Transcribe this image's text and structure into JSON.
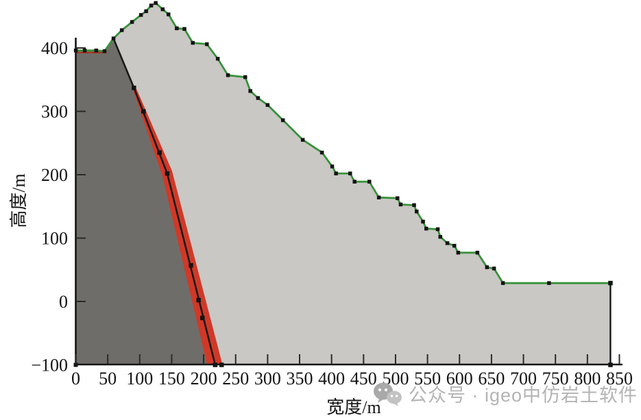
{
  "watermark": {
    "icon": "wechat-icon",
    "text": "公众号 · igeo中仿岩土软件",
    "color": "#b4b4b4"
  },
  "chart_data": {
    "type": "area",
    "title": "",
    "subtitle": "",
    "xlabel": "宽度/m",
    "ylabel": "高度/m",
    "xlim": [
      0,
      850
    ],
    "ylim": [
      -100,
      470
    ],
    "grid": false,
    "legend": null,
    "x_ticks": [
      0,
      50,
      100,
      150,
      200,
      250,
      300,
      350,
      400,
      450,
      500,
      550,
      600,
      650,
      700,
      750,
      800,
      850
    ],
    "y_ticks": [
      -100,
      0,
      100,
      200,
      300,
      400
    ],
    "colors": {
      "slope_body": "#c9c8c4",
      "bedrock": "#6f6d69",
      "weak_layer": "#d03928",
      "surface_weak_line": "#a5301f",
      "surface_line": "#37923a",
      "fault_line": "#1a1a1a",
      "marker": "#141414",
      "axis": "#141414"
    },
    "regions": [
      {
        "name": "slope-body",
        "description": "light gray landslide/slope cross-section body",
        "fill": "slope_body"
      },
      {
        "name": "bedrock",
        "description": "dark gray bedrock wedge on the left",
        "fill": "bedrock"
      },
      {
        "name": "weak-layer",
        "description": "red sliding weak zone band",
        "fill": "weak_layer"
      }
    ],
    "surface_profile": [
      [
        0,
        396
      ],
      [
        14,
        396
      ],
      [
        32,
        396
      ],
      [
        45,
        395
      ],
      [
        59,
        415
      ],
      [
        72,
        428
      ],
      [
        88,
        441
      ],
      [
        102,
        452
      ],
      [
        110,
        458
      ],
      [
        118,
        467
      ],
      [
        125,
        471
      ],
      [
        136,
        461
      ],
      [
        145,
        453
      ],
      [
        158,
        431
      ],
      [
        170,
        430
      ],
      [
        183,
        408
      ],
      [
        205,
        406
      ],
      [
        222,
        383
      ],
      [
        238,
        357
      ],
      [
        265,
        354
      ],
      [
        273,
        332
      ],
      [
        285,
        321
      ],
      [
        300,
        310
      ],
      [
        324,
        286
      ],
      [
        355,
        255
      ],
      [
        385,
        235
      ],
      [
        401,
        213
      ],
      [
        407,
        202
      ],
      [
        429,
        202
      ],
      [
        436,
        189
      ],
      [
        459,
        189
      ],
      [
        474,
        164
      ],
      [
        503,
        163
      ],
      [
        508,
        153
      ],
      [
        529,
        152
      ],
      [
        533,
        142
      ],
      [
        543,
        126
      ],
      [
        548,
        115
      ],
      [
        566,
        114
      ],
      [
        570,
        102
      ],
      [
        581,
        92
      ],
      [
        592,
        88
      ],
      [
        598,
        77
      ],
      [
        628,
        77
      ],
      [
        643,
        54
      ],
      [
        654,
        52
      ],
      [
        668,
        29
      ],
      [
        740,
        29
      ],
      [
        836,
        29
      ]
    ],
    "bedrock_polygon": [
      [
        0,
        -100
      ],
      [
        0,
        394
      ],
      [
        45,
        393
      ],
      [
        59,
        413
      ],
      [
        91,
        337
      ],
      [
        143,
        202
      ],
      [
        218,
        -100
      ]
    ],
    "weak_band_polygon": [
      [
        88,
        340
      ],
      [
        95,
        334
      ],
      [
        150,
        206
      ],
      [
        229,
        -100
      ],
      [
        206,
        -100
      ],
      [
        136,
        198
      ]
    ],
    "surface_weak_line": [
      [
        0,
        393
      ],
      [
        48,
        393
      ]
    ],
    "fault_line": [
      [
        59,
        415
      ],
      [
        91,
        337
      ],
      [
        143,
        202
      ],
      [
        218,
        -100
      ]
    ],
    "fault_markers": [
      [
        91,
        337
      ],
      [
        106,
        300
      ],
      [
        131,
        235
      ],
      [
        143,
        202
      ],
      [
        180,
        57
      ],
      [
        192,
        2
      ],
      [
        198,
        -26
      ],
      [
        218,
        -100
      ],
      [
        228,
        -100
      ]
    ],
    "right_edge": [
      [
        836,
        29
      ],
      [
        836,
        -100
      ]
    ],
    "corner_marker": [
      0,
      -100
    ]
  }
}
